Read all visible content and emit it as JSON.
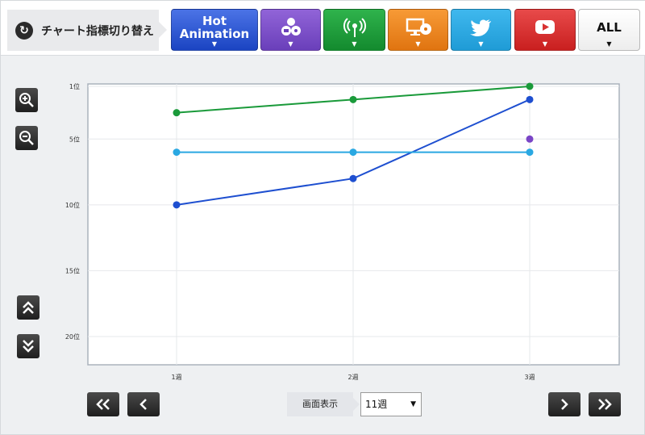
{
  "toolbar": {
    "switch_label": "チャート指標切り替え",
    "buttons": {
      "hot_line1": "Hot",
      "hot_line2": "Animation",
      "all": "ALL"
    },
    "colors": {
      "hot": "#2a55d4",
      "package": "#7a4fc8",
      "airplay": "#1f9a3b",
      "pc": "#ee8420",
      "twitter": "#2aa8e2",
      "youtube": "#d83232"
    }
  },
  "controls": {
    "display_label": "画面表示",
    "week_value": "11週"
  },
  "chart_data": {
    "type": "line",
    "y_axis": {
      "ticks": [
        {
          "value": 1,
          "label": "1位"
        },
        {
          "value": 5,
          "label": "5位"
        },
        {
          "value": 10,
          "label": "10位"
        },
        {
          "value": 15,
          "label": "15位"
        },
        {
          "value": 20,
          "label": "20位"
        }
      ],
      "range": [
        1,
        22
      ],
      "inverted": true
    },
    "x_axis": {
      "categories": [
        "1週",
        "2週",
        "3週"
      ]
    },
    "grid": true,
    "series": [
      {
        "color": "#1a9a3a",
        "values": [
          3,
          2,
          1
        ]
      },
      {
        "color": "#1e4fd0",
        "values": [
          10,
          8,
          2
        ]
      },
      {
        "color": "#2aa8e2",
        "values": [
          6,
          6,
          6
        ]
      },
      {
        "color": "#7a45c6",
        "values": [
          null,
          null,
          5
        ]
      }
    ]
  }
}
